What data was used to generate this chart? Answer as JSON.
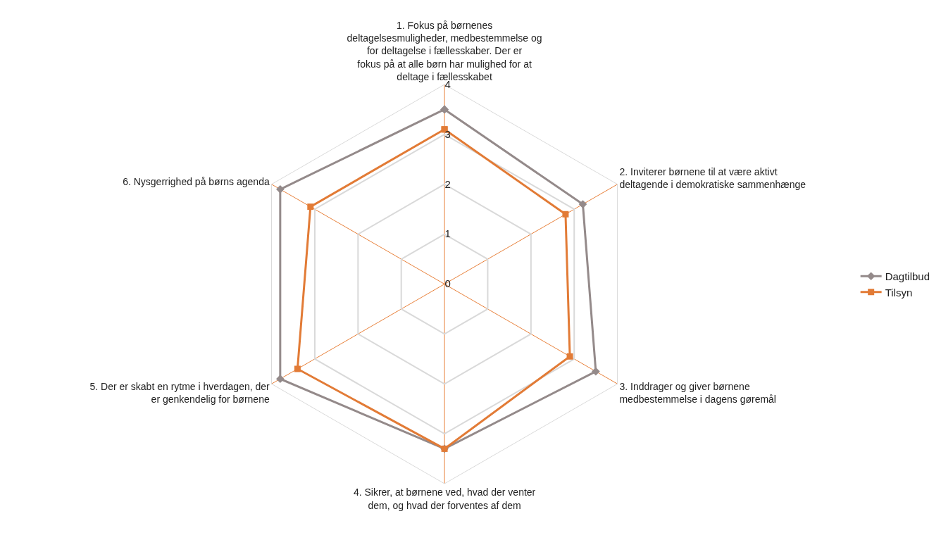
{
  "chart_data": {
    "type": "radar",
    "categories": [
      "1. Fokus på børnenes deltagelsesmuligheder, medbestemmelse og for deltagelse i fællesskaber. Der er fokus på at alle børn har mulighed for at deltage i fællesskabet",
      "2. Inviterer børnene til at være aktivt deltagende i demokratiske sammenhænge",
      "3. Inddrager og giver børnene medbestemmelse i dagens gøremål",
      "4. Sikrer, at børnene ved, hvad der venter dem, og hvad der forventes af dem",
      "5. Der er skabt en rytme i hverdagen, der er genkendelig for børnene",
      "6. Nysgerrighed på børns agenda"
    ],
    "series": [
      {
        "name": "Dagtilbud",
        "color": "#948a8a",
        "marker": "diamond",
        "values": [
          3.5,
          3.2,
          3.5,
          3.3,
          3.8,
          3.8
        ]
      },
      {
        "name": "Tilsyn",
        "color": "#e27b36",
        "marker": "square",
        "values": [
          3.1,
          2.8,
          2.9,
          3.3,
          3.4,
          3.1
        ]
      }
    ],
    "ylim": [
      0,
      4
    ],
    "yticks": [
      0,
      1,
      2,
      3,
      4
    ],
    "grid": true,
    "legend": "right"
  }
}
